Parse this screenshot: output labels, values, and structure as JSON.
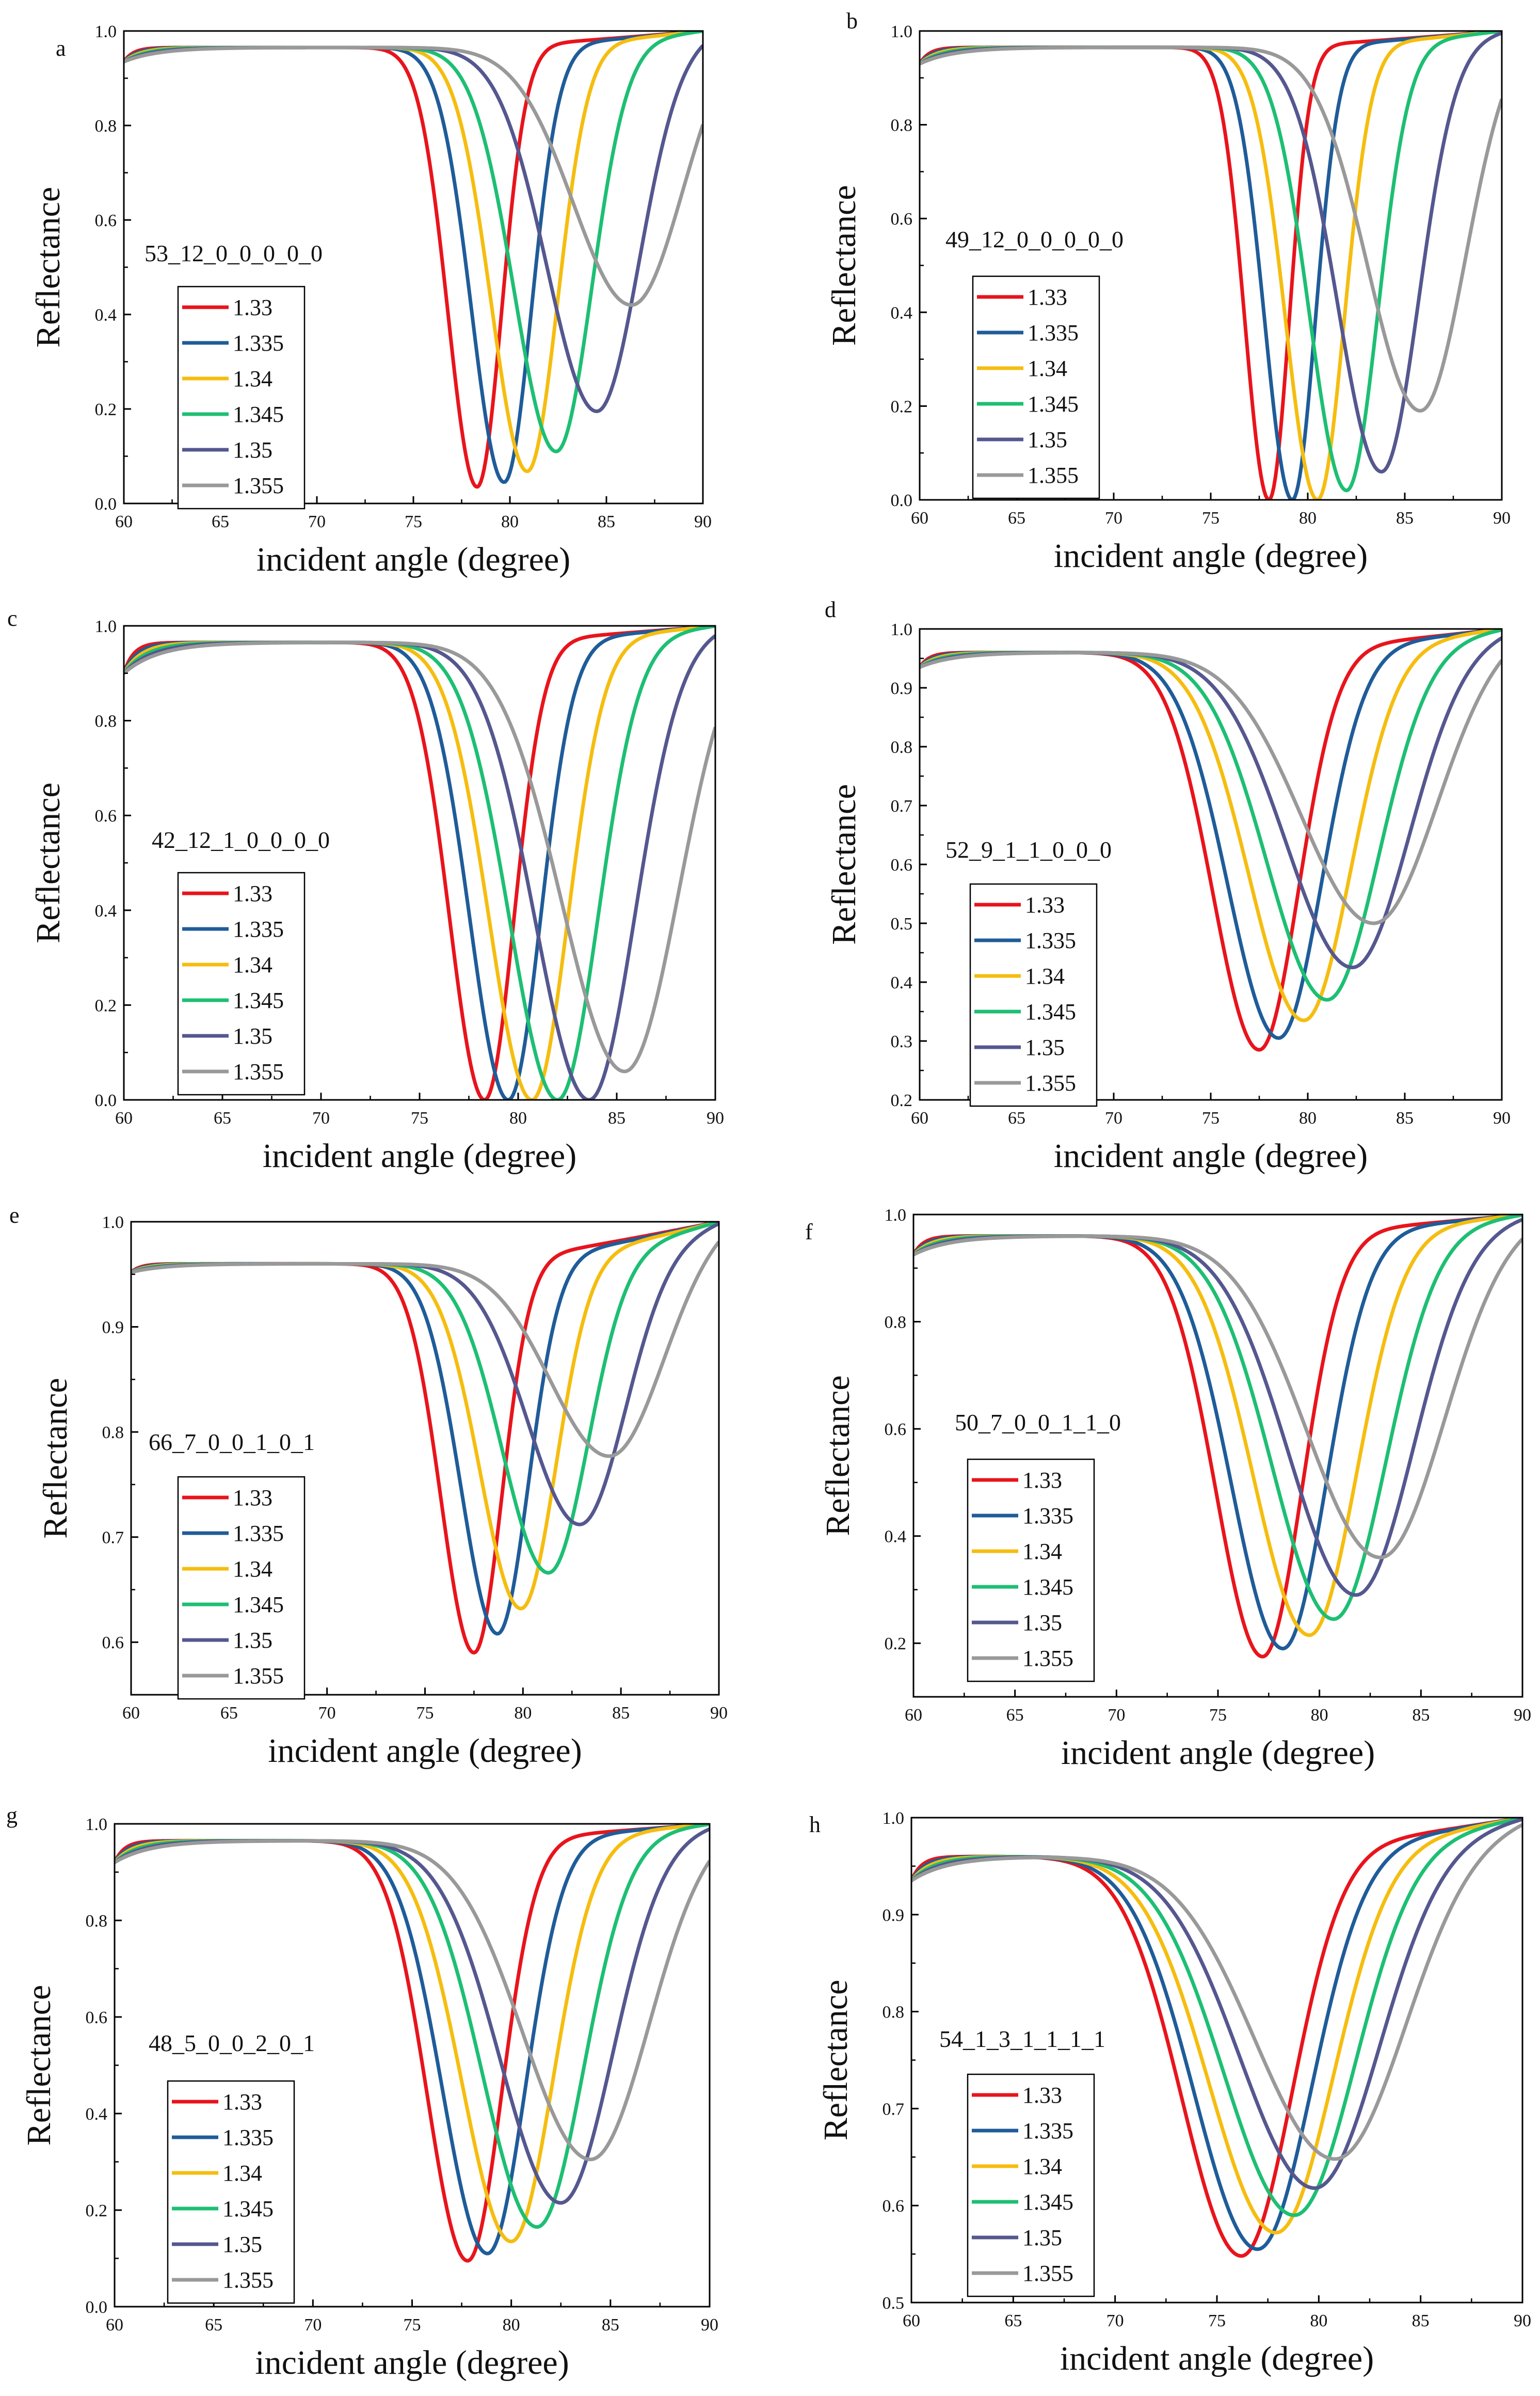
{
  "figure": {
    "legend_labels": [
      "1.33",
      "1.335",
      "1.34",
      "1.345",
      "1.35",
      "1.355"
    ],
    "series_colors": [
      "#e8141c",
      "#1f5c99",
      "#f5bd0f",
      "#1dbf73",
      "#55578f",
      "#999999"
    ]
  },
  "chart_data": [
    {
      "type": "line",
      "panel": "a",
      "annotation": "53_12_0_0_0_0_0",
      "xlabel": "incident angle (degree)",
      "ylabel": "Reflectance",
      "xlim": [
        60,
        90
      ],
      "ylim": [
        0.0,
        1.0
      ],
      "xticks": [
        "60",
        "65",
        "70",
        "75",
        "80",
        "85",
        "90"
      ],
      "yticks": [
        "0.0",
        "0.2",
        "0.4",
        "0.6",
        "0.8",
        "1.0"
      ],
      "resonance_angles": [
        78.3,
        79.7,
        80.9,
        82.4,
        84.5,
        86.3
      ],
      "min_reflectance": [
        0.035,
        0.045,
        0.068,
        0.11,
        0.195,
        0.42
      ],
      "widths": [
        1.7,
        1.9,
        2.1,
        2.45,
        2.9,
        3.4
      ],
      "plateau": 0.965,
      "start_values": [
        0.935,
        0.935,
        0.935,
        0.935,
        0.935,
        0.935
      ],
      "series": [
        {
          "name": "1.33",
          "color": "#e8141c"
        },
        {
          "name": "1.335",
          "color": "#1f5c99"
        },
        {
          "name": "1.34",
          "color": "#f5bd0f"
        },
        {
          "name": "1.345",
          "color": "#1dbf73"
        },
        {
          "name": "1.35",
          "color": "#55578f"
        },
        {
          "name": "1.355",
          "color": "#999999"
        }
      ]
    },
    {
      "type": "line",
      "panel": "b",
      "annotation": "49_12_0_0_0_0_0",
      "xlabel": "incident angle (degree)",
      "ylabel": "Reflectance",
      "xlim": [
        60,
        90
      ],
      "ylim": [
        0.0,
        1.0
      ],
      "xticks": [
        "60",
        "65",
        "70",
        "75",
        "80",
        "85",
        "90"
      ],
      "yticks": [
        "0.0",
        "0.2",
        "0.4",
        "0.6",
        "0.8",
        "1.0"
      ],
      "resonance_angles": [
        78.0,
        79.2,
        80.5,
        82.0,
        83.8,
        85.8
      ],
      "min_reflectance": [
        0.0,
        0.0,
        0.0,
        0.02,
        0.06,
        0.19
      ],
      "widths": [
        1.4,
        1.6,
        1.85,
        2.15,
        2.55,
        3.05
      ],
      "plateau": 0.965,
      "start_values": [
        0.93,
        0.93,
        0.93,
        0.93,
        0.93,
        0.93
      ],
      "series": [
        {
          "name": "1.33",
          "color": "#e8141c"
        },
        {
          "name": "1.335",
          "color": "#1f5c99"
        },
        {
          "name": "1.34",
          "color": "#f5bd0f"
        },
        {
          "name": "1.345",
          "color": "#1dbf73"
        },
        {
          "name": "1.35",
          "color": "#55578f"
        },
        {
          "name": "1.355",
          "color": "#999999"
        }
      ]
    },
    {
      "type": "line",
      "panel": "c",
      "annotation": "42_12_1_0_0_0_0",
      "xlabel": "incident angle (degree)",
      "ylabel": "Reflectance",
      "xlim": [
        60,
        90
      ],
      "ylim": [
        0.0,
        1.0
      ],
      "xticks": [
        "60",
        "65",
        "70",
        "75",
        "80",
        "85",
        "90"
      ],
      "yticks": [
        "0.0",
        "0.2",
        "0.4",
        "0.6",
        "0.8",
        "1.0"
      ],
      "resonance_angles": [
        78.3,
        79.5,
        80.7,
        82.0,
        83.6,
        85.4
      ],
      "min_reflectance": [
        0.0,
        0.0,
        0.0,
        0.0,
        0.0,
        0.06
      ],
      "widths": [
        2.0,
        2.2,
        2.45,
        2.75,
        3.1,
        3.6
      ],
      "plateau": 0.965,
      "start_values": [
        0.9,
        0.9,
        0.9,
        0.9,
        0.9,
        0.9
      ],
      "series": [
        {
          "name": "1.33",
          "color": "#e8141c"
        },
        {
          "name": "1.335",
          "color": "#1f5c99"
        },
        {
          "name": "1.34",
          "color": "#f5bd0f"
        },
        {
          "name": "1.345",
          "color": "#1dbf73"
        },
        {
          "name": "1.35",
          "color": "#55578f"
        },
        {
          "name": "1.355",
          "color": "#999999"
        }
      ]
    },
    {
      "type": "line",
      "panel": "d",
      "annotation": "52_9_1_1_0_0_0",
      "xlabel": "incident angle (degree)",
      "ylabel": "Reflectance",
      "xlim": [
        60,
        90
      ],
      "ylim": [
        0.2,
        1.0
      ],
      "xticks": [
        "60",
        "65",
        "70",
        "75",
        "80",
        "85",
        "90"
      ],
      "yticks": [
        "0.2",
        "0.3",
        "0.4",
        "0.5",
        "0.6",
        "0.7",
        "0.8",
        "0.9",
        "1.0"
      ],
      "resonance_angles": [
        77.5,
        78.5,
        79.8,
        81.0,
        82.3,
        83.4
      ],
      "min_reflectance": [
        0.285,
        0.305,
        0.335,
        0.37,
        0.425,
        0.5
      ],
      "widths": [
        2.7,
        2.95,
        3.2,
        3.5,
        3.85,
        4.2
      ],
      "plateau": 0.96,
      "start_values": [
        0.935,
        0.935,
        0.935,
        0.935,
        0.935,
        0.935
      ],
      "series": [
        {
          "name": "1.33",
          "color": "#e8141c"
        },
        {
          "name": "1.335",
          "color": "#1f5c99"
        },
        {
          "name": "1.34",
          "color": "#f5bd0f"
        },
        {
          "name": "1.345",
          "color": "#1dbf73"
        },
        {
          "name": "1.35",
          "color": "#55578f"
        },
        {
          "name": "1.355",
          "color": "#999999"
        }
      ]
    },
    {
      "type": "line",
      "panel": "e",
      "annotation": "66_7_0_0_1_0_1",
      "xlabel": "incident angle (degree)",
      "ylabel": "Reflectance",
      "xlim": [
        60,
        90
      ],
      "ylim": [
        0.55,
        1.0
      ],
      "xticks": [
        "60",
        "65",
        "70",
        "75",
        "80",
        "85",
        "90"
      ],
      "yticks": [
        "0.6",
        "0.7",
        "0.8",
        "0.9",
        "1.0"
      ],
      "resonance_angles": [
        77.5,
        78.7,
        79.9,
        81.3,
        82.9,
        84.4
      ],
      "min_reflectance": [
        0.59,
        0.608,
        0.632,
        0.666,
        0.712,
        0.777
      ],
      "widths": [
        1.9,
        2.1,
        2.35,
        2.65,
        3.0,
        3.4
      ],
      "plateau": 0.96,
      "start_values": [
        0.952,
        0.952,
        0.952,
        0.952,
        0.952,
        0.952
      ],
      "series": [
        {
          "name": "1.33",
          "color": "#e8141c"
        },
        {
          "name": "1.335",
          "color": "#1f5c99"
        },
        {
          "name": "1.34",
          "color": "#f5bd0f"
        },
        {
          "name": "1.345",
          "color": "#1dbf73"
        },
        {
          "name": "1.35",
          "color": "#55578f"
        },
        {
          "name": "1.355",
          "color": "#999999"
        }
      ]
    },
    {
      "type": "line",
      "panel": "f",
      "annotation": "50_7_0_0_1_1_0",
      "xlabel": "incident angle (degree)",
      "ylabel": "Reflectance",
      "xlim": [
        60,
        90
      ],
      "ylim": [
        0.1,
        1.0
      ],
      "xticks": [
        "60",
        "65",
        "70",
        "75",
        "80",
        "85",
        "90"
      ],
      "yticks": [
        "0.2",
        "0.4",
        "0.6",
        "0.8",
        "1.0"
      ],
      "resonance_angles": [
        77.2,
        78.2,
        79.5,
        80.7,
        81.8,
        83.0
      ],
      "min_reflectance": [
        0.175,
        0.19,
        0.215,
        0.245,
        0.29,
        0.36
      ],
      "widths": [
        2.6,
        2.85,
        3.1,
        3.4,
        3.75,
        4.1
      ],
      "plateau": 0.96,
      "start_values": [
        0.925,
        0.925,
        0.925,
        0.925,
        0.925,
        0.925
      ],
      "series": [
        {
          "name": "1.33",
          "color": "#e8141c"
        },
        {
          "name": "1.335",
          "color": "#1f5c99"
        },
        {
          "name": "1.34",
          "color": "#f5bd0f"
        },
        {
          "name": "1.345",
          "color": "#1dbf73"
        },
        {
          "name": "1.35",
          "color": "#55578f"
        },
        {
          "name": "1.355",
          "color": "#999999"
        }
      ]
    },
    {
      "type": "line",
      "panel": "g",
      "annotation": "48_5_0_0_2_0_1",
      "xlabel": "incident angle (degree)",
      "ylabel": "Reflectance",
      "xlim": [
        60,
        90
      ],
      "ylim": [
        0.0,
        1.0
      ],
      "xticks": [
        "60",
        "65",
        "70",
        "75",
        "80",
        "85",
        "90"
      ],
      "yticks": [
        "0.0",
        "0.2",
        "0.4",
        "0.6",
        "0.8",
        "1.0"
      ],
      "resonance_angles": [
        77.8,
        78.8,
        80.0,
        81.3,
        82.5,
        84.0
      ],
      "min_reflectance": [
        0.095,
        0.11,
        0.135,
        0.165,
        0.215,
        0.305
      ],
      "widths": [
        2.3,
        2.55,
        2.8,
        3.1,
        3.45,
        3.85
      ],
      "plateau": 0.965,
      "start_values": [
        0.92,
        0.92,
        0.92,
        0.92,
        0.92,
        0.92
      ],
      "series": [
        {
          "name": "1.33",
          "color": "#e8141c"
        },
        {
          "name": "1.335",
          "color": "#1f5c99"
        },
        {
          "name": "1.34",
          "color": "#f5bd0f"
        },
        {
          "name": "1.345",
          "color": "#1dbf73"
        },
        {
          "name": "1.35",
          "color": "#55578f"
        },
        {
          "name": "1.355",
          "color": "#999999"
        }
      ]
    },
    {
      "type": "line",
      "panel": "h",
      "annotation": "54_1_3_1_1_1_1",
      "xlabel": "incident angle (degree)",
      "ylabel": "Reflectance",
      "xlim": [
        60,
        90
      ],
      "ylim": [
        0.5,
        1.0
      ],
      "xticks": [
        "60",
        "65",
        "70",
        "75",
        "80",
        "85",
        "90"
      ],
      "yticks": [
        "0.5",
        "0.6",
        "0.7",
        "0.8",
        "0.9",
        "1.0"
      ],
      "resonance_angles": [
        76.2,
        77.0,
        77.9,
        78.8,
        79.8,
        80.8
      ],
      "min_reflectance": [
        0.548,
        0.555,
        0.572,
        0.59,
        0.618,
        0.648
      ],
      "widths": [
        3.3,
        3.5,
        3.7,
        3.9,
        4.15,
        4.45
      ],
      "plateau": 0.96,
      "start_values": [
        0.935,
        0.935,
        0.935,
        0.935,
        0.935,
        0.935
      ],
      "series": [
        {
          "name": "1.33",
          "color": "#e8141c"
        },
        {
          "name": "1.335",
          "color": "#1f5c99"
        },
        {
          "name": "1.34",
          "color": "#f5bd0f"
        },
        {
          "name": "1.345",
          "color": "#1dbf73"
        },
        {
          "name": "1.35",
          "color": "#55578f"
        },
        {
          "name": "1.355",
          "color": "#999999"
        }
      ]
    }
  ]
}
